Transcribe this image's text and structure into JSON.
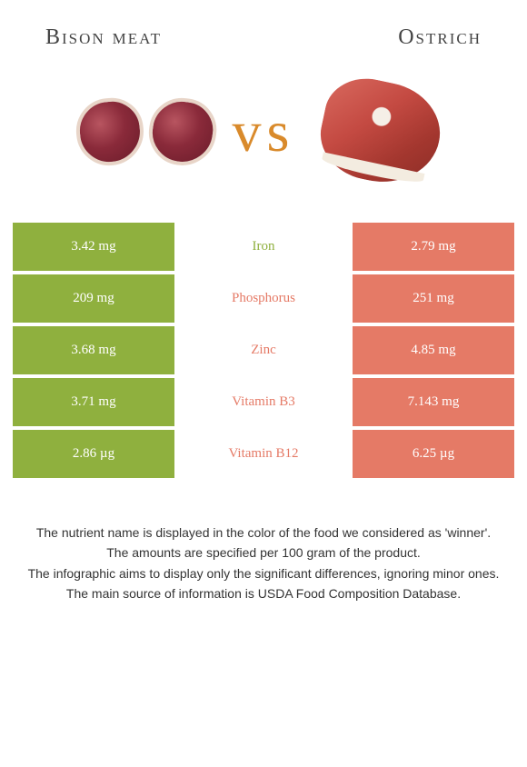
{
  "title_left": "Bison meat",
  "title_right": "Ostrich",
  "vs_label": "vs",
  "colors": {
    "left_bg": "#8fb03e",
    "right_bg": "#e57a66",
    "nutrient_left_win": "#8fb03e",
    "nutrient_right_win": "#e57a66"
  },
  "rows": [
    {
      "nutrient": "Iron",
      "left": "3.42 mg",
      "right": "2.79 mg",
      "winner": "left"
    },
    {
      "nutrient": "Phosphorus",
      "left": "209 mg",
      "right": "251 mg",
      "winner": "right"
    },
    {
      "nutrient": "Zinc",
      "left": "3.68 mg",
      "right": "4.85 mg",
      "winner": "right"
    },
    {
      "nutrient": "Vitamin B3",
      "left": "3.71 mg",
      "right": "7.143 mg",
      "winner": "right"
    },
    {
      "nutrient": "Vitamin B12",
      "left": "2.86 µg",
      "right": "6.25 µg",
      "winner": "right"
    }
  ],
  "footer": [
    "The nutrient name is displayed in the color of the food we considered as 'winner'.",
    "The amounts are specified per 100 gram of the product.",
    "The infographic aims to display only the significant differences, ignoring minor ones.",
    "The main source of information is USDA Food Composition Database."
  ]
}
